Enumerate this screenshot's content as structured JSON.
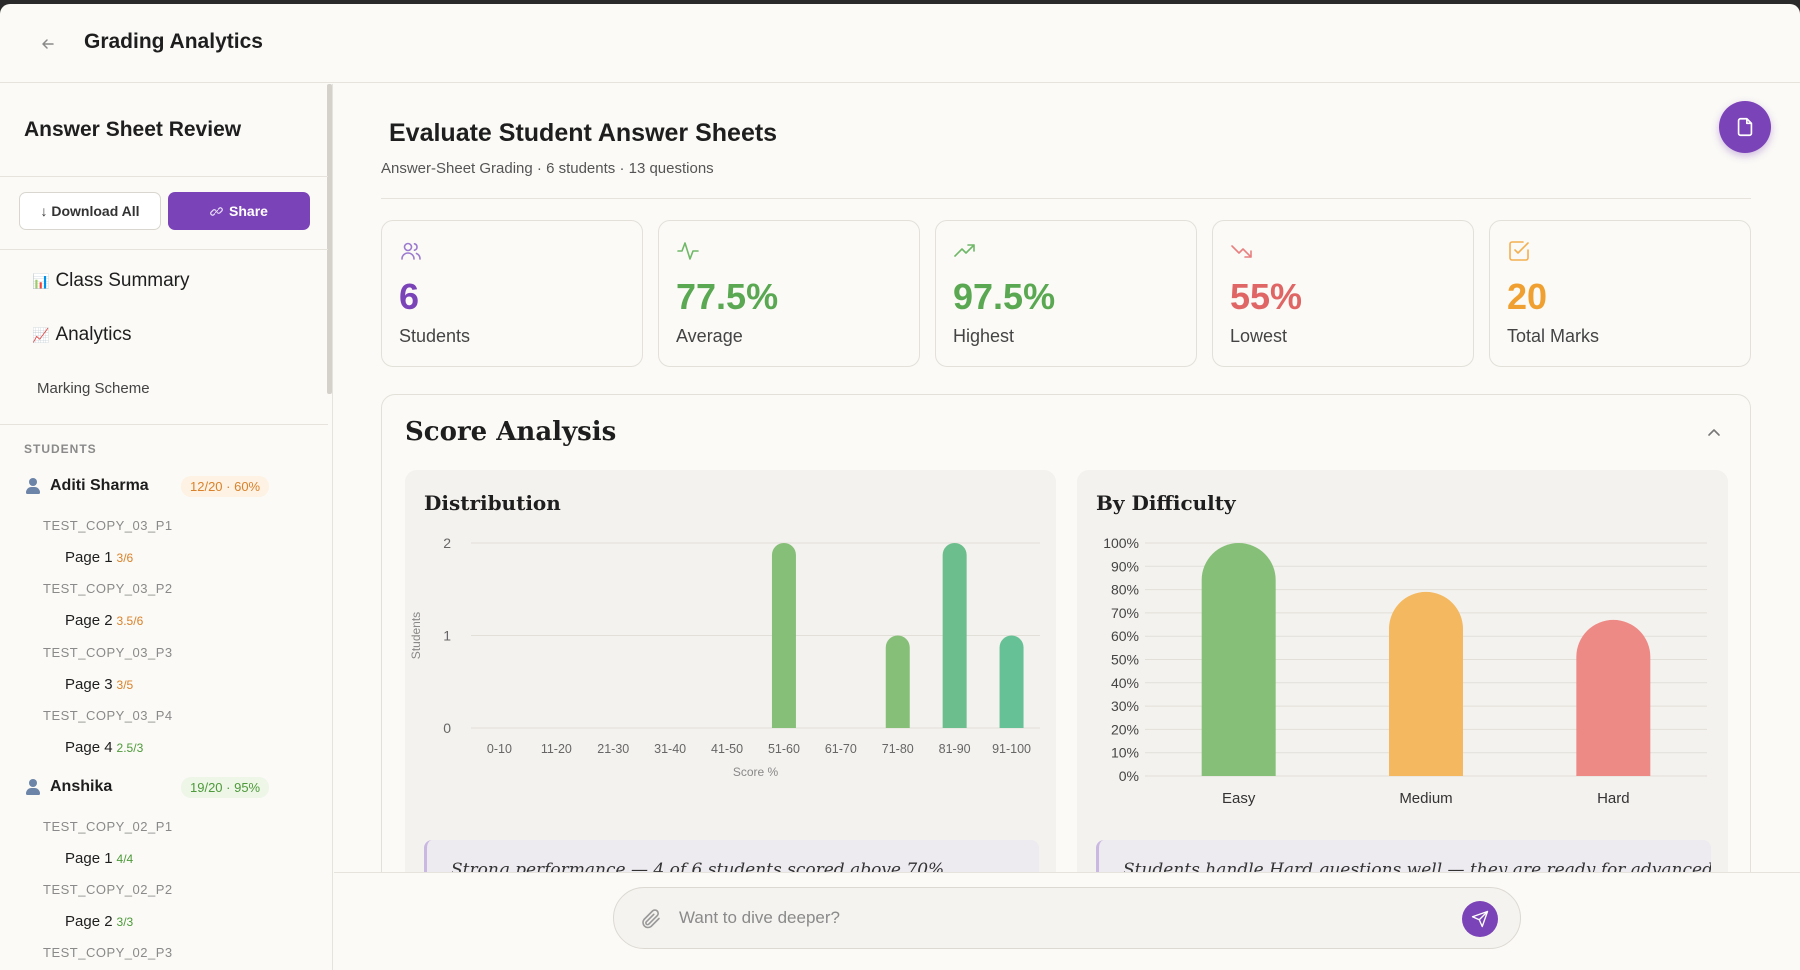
{
  "header": {
    "title": "Grading Analytics",
    "back_icon": "arrow-left-icon"
  },
  "sidebar": {
    "title": "Answer Sheet Review",
    "download_label": "↓ Download All",
    "share_label": "Share",
    "nav": [
      {
        "icon": "📊",
        "label": "Class Summary"
      },
      {
        "icon": "📈",
        "label": "Analytics"
      }
    ],
    "marking_scheme": "Marking Scheme",
    "students_heading": "STUDENTS",
    "students": [
      {
        "name": "Aditi Sharma",
        "score": "12/20 · 60%",
        "copies": [
          {
            "code": "TEST_COPY_03_P1",
            "page": "Page 1",
            "page_score": "3/6"
          },
          {
            "code": "TEST_COPY_03_P2",
            "page": "Page 2",
            "page_score": "3.5/6"
          },
          {
            "code": "TEST_COPY_03_P3",
            "page": "Page 3",
            "page_score": "3/5"
          },
          {
            "code": "TEST_COPY_03_P4",
            "page": "Page 4",
            "page_score": "2.5/3"
          }
        ]
      },
      {
        "name": "Anshika",
        "score": "19/20 · 95%",
        "copies": [
          {
            "code": "TEST_COPY_02_P1",
            "page": "Page 1",
            "page_score": "4/4"
          },
          {
            "code": "TEST_COPY_02_P2",
            "page": "Page 2",
            "page_score": "3/3"
          },
          {
            "code": "TEST_COPY_02_P3"
          }
        ]
      }
    ]
  },
  "main": {
    "title": "Evaluate Student Answer Sheets",
    "subtitle": "Answer-Sheet Grading · 6 students · 13 questions",
    "stats": [
      {
        "value": "6",
        "label": "Students",
        "color": "#7b43b8",
        "icon": "users-icon"
      },
      {
        "value": "77.5%",
        "label": "Average",
        "color": "#5aa852",
        "icon": "activity-icon"
      },
      {
        "value": "97.5%",
        "label": "Highest",
        "color": "#5aa852",
        "icon": "trending-up-icon"
      },
      {
        "value": "55%",
        "label": "Lowest",
        "color": "#e06666",
        "icon": "trending-down-icon"
      },
      {
        "value": "20",
        "label": "Total Marks",
        "color": "#f0a030",
        "icon": "check-square-icon"
      }
    ],
    "analysis": {
      "title": "Score Analysis",
      "distribution": {
        "title": "Distribution",
        "insight": "Strong performance — 4 of 6 students scored above 70%"
      },
      "difficulty": {
        "title": "By Difficulty",
        "insight": "Students handle Hard questions well — they are ready for advanced"
      }
    }
  },
  "composer": {
    "placeholder": "Want to dive deeper?"
  },
  "chart_data": [
    {
      "type": "bar",
      "title": "Distribution",
      "xlabel": "Score %",
      "ylabel": "Students",
      "categories": [
        "0-10",
        "11-20",
        "21-30",
        "31-40",
        "41-50",
        "51-60",
        "61-70",
        "71-80",
        "81-90",
        "91-100"
      ],
      "values": [
        0,
        0,
        0,
        0,
        0,
        2,
        0,
        1,
        2,
        1
      ],
      "ylim": [
        0,
        2
      ],
      "yticks": [
        "0",
        "1",
        "2"
      ],
      "colors": [
        "#86bf78",
        "#86bf78",
        "#86bf78",
        "#86bf78",
        "#86bf78",
        "#86bf78",
        "#7cc084",
        "#86bf78",
        "#6cbf8c",
        "#66c296"
      ],
      "grid": true
    },
    {
      "type": "bar",
      "title": "By Difficulty",
      "categories": [
        "Easy",
        "Medium",
        "Hard"
      ],
      "values": [
        100,
        79,
        67
      ],
      "ylim": [
        0,
        100
      ],
      "yticks": [
        "0%",
        "10%",
        "20%",
        "30%",
        "40%",
        "50%",
        "60%",
        "70%",
        "80%",
        "90%",
        "100%"
      ],
      "colors": [
        "#86bf78",
        "#f3b860",
        "#ee8a86"
      ],
      "grid": true
    }
  ]
}
